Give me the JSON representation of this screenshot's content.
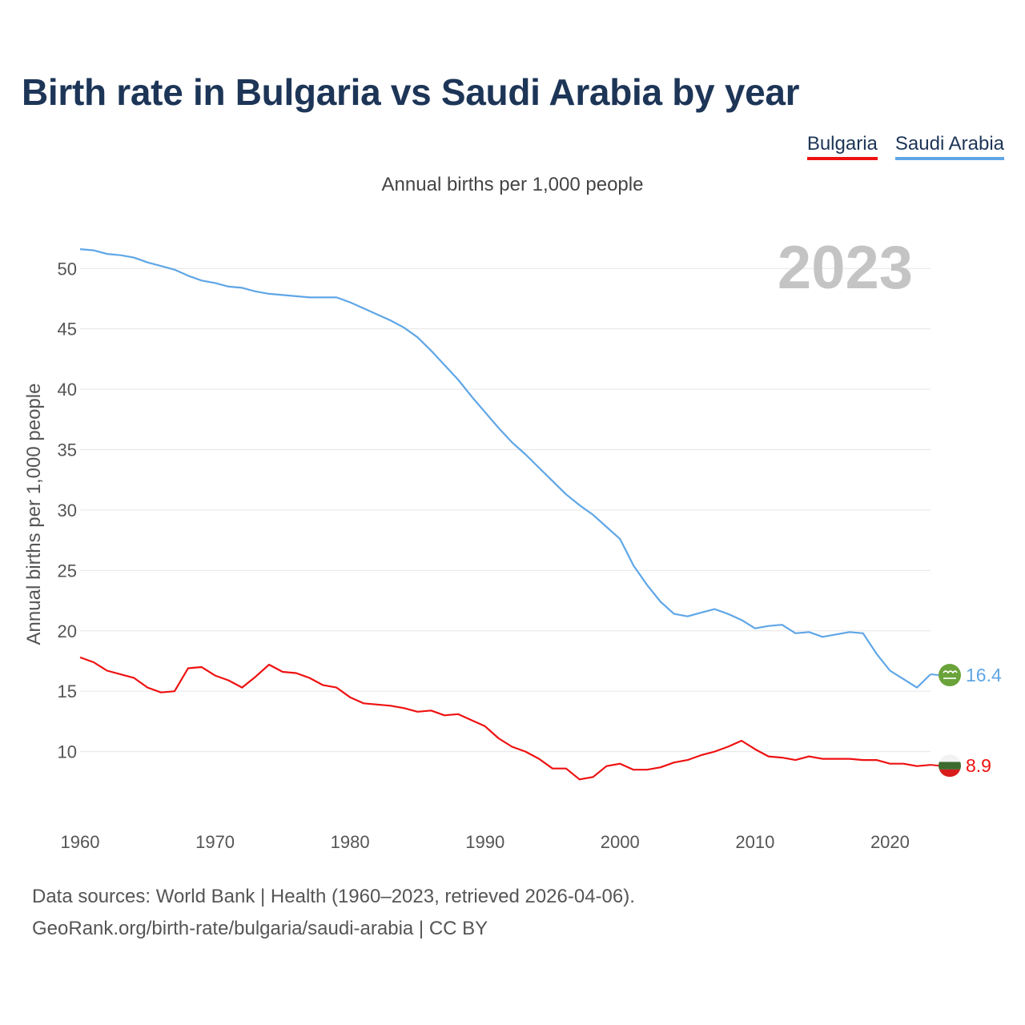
{
  "title": "Birth rate in Bulgaria vs Saudi Arabia by year",
  "subtitle": "Annual births per 1,000 people",
  "legend": [
    {
      "label": "Bulgaria",
      "color": "#ee1111"
    },
    {
      "label": "Saudi Arabia",
      "color": "#5fa6e6"
    }
  ],
  "footer": {
    "line1": "Data sources: World Bank | Health (1960–2023, retrieved 2026-04-06).",
    "line2": "GeoRank.org/birth-rate/bulgaria/saudi-arabia | CC BY"
  },
  "chart_data": {
    "type": "line",
    "title": "Birth rate in Bulgaria vs Saudi Arabia by year",
    "ylabel": "Annual births per 1,000 people",
    "xlabel": "",
    "year_label": "2023",
    "xlim": [
      1960,
      2023
    ],
    "ylim": [
      5,
      53
    ],
    "yticks": [
      10,
      15,
      20,
      25,
      30,
      35,
      40,
      45,
      50
    ],
    "xticks": [
      1960,
      1970,
      1980,
      1990,
      2000,
      2010,
      2020
    ],
    "x": [
      1960,
      1961,
      1962,
      1963,
      1964,
      1965,
      1966,
      1967,
      1968,
      1969,
      1970,
      1971,
      1972,
      1973,
      1974,
      1975,
      1976,
      1977,
      1978,
      1979,
      1980,
      1981,
      1982,
      1983,
      1984,
      1985,
      1986,
      1987,
      1988,
      1989,
      1990,
      1991,
      1992,
      1993,
      1994,
      1995,
      1996,
      1997,
      1998,
      1999,
      2000,
      2001,
      2002,
      2003,
      2004,
      2005,
      2006,
      2007,
      2008,
      2009,
      2010,
      2011,
      2012,
      2013,
      2014,
      2015,
      2016,
      2017,
      2018,
      2019,
      2020,
      2021,
      2022,
      2023
    ],
    "series": [
      {
        "name": "Saudi Arabia",
        "color": "#5fa6e6",
        "end_label": "16.4",
        "values": [
          51.6,
          51.5,
          51.2,
          51.1,
          50.9,
          50.5,
          50.2,
          49.9,
          49.4,
          49.0,
          48.8,
          48.5,
          48.4,
          48.1,
          47.9,
          47.8,
          47.7,
          47.6,
          47.6,
          47.6,
          47.2,
          46.7,
          46.2,
          45.7,
          45.1,
          44.3,
          43.2,
          42.0,
          40.8,
          39.4,
          38.1,
          36.8,
          35.6,
          34.6,
          33.5,
          32.4,
          31.3,
          30.4,
          29.6,
          28.6,
          27.6,
          25.4,
          23.8,
          22.4,
          21.4,
          21.2,
          21.5,
          21.8,
          21.4,
          20.9,
          20.2,
          20.4,
          20.5,
          19.8,
          19.9,
          19.5,
          19.7,
          19.9,
          19.8,
          18.1,
          16.7,
          16.0,
          15.3,
          16.4
        ]
      },
      {
        "name": "Bulgaria",
        "color": "#ee1111",
        "end_label": "8.9",
        "values": [
          17.8,
          17.4,
          16.7,
          16.4,
          16.1,
          15.3,
          14.9,
          15.0,
          16.9,
          17.0,
          16.3,
          15.9,
          15.3,
          16.2,
          17.2,
          16.6,
          16.5,
          16.1,
          15.5,
          15.3,
          14.5,
          14.0,
          13.9,
          13.8,
          13.6,
          13.3,
          13.4,
          13.0,
          13.1,
          12.6,
          12.1,
          11.1,
          10.4,
          10.0,
          9.4,
          8.6,
          8.6,
          7.7,
          7.9,
          8.8,
          9.0,
          8.5,
          8.5,
          8.7,
          9.1,
          9.3,
          9.7,
          10.0,
          10.4,
          10.9,
          10.2,
          9.6,
          9.5,
          9.3,
          9.6,
          9.4,
          9.4,
          9.4,
          9.3,
          9.3,
          9.0,
          9.0,
          8.8,
          8.9
        ]
      }
    ]
  }
}
